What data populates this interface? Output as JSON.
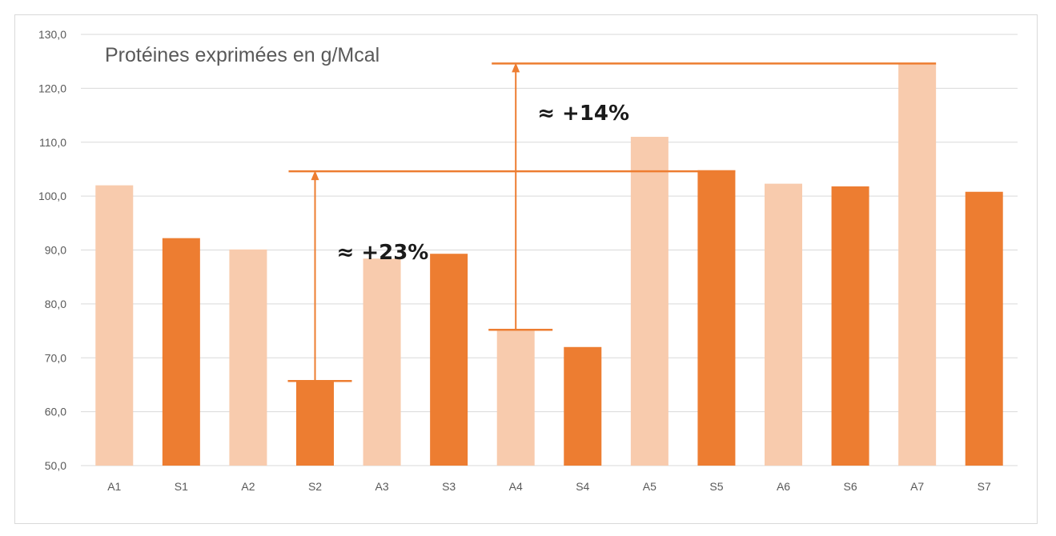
{
  "chart_data": {
    "type": "bar",
    "title": "Protéines exprimées en g/Mcal",
    "categories": [
      "A1",
      "S1",
      "A2",
      "S2",
      "A3",
      "S3",
      "A4",
      "S4",
      "A5",
      "S5",
      "A6",
      "S6",
      "A7",
      "S7"
    ],
    "values": [
      102.0,
      92.2,
      90.1,
      65.7,
      88.4,
      89.3,
      75.0,
      72.0,
      111.0,
      104.8,
      102.3,
      101.8,
      124.6,
      100.8
    ],
    "ylim": [
      50,
      130
    ],
    "yticks": [
      "50,0",
      "60,0",
      "70,0",
      "80,0",
      "90,0",
      "100,0",
      "110,0",
      "120,0",
      "130,0"
    ],
    "grid": true,
    "colors": {
      "A": "#f8cbad",
      "S": "#ed7d31",
      "annotation": "#ed7d31",
      "grid": "#d9d9d9"
    },
    "annotations": [
      {
        "text": "≈ +23%",
        "from_category": "S2",
        "from_value": 65.7,
        "to_value": 104.6,
        "to_category": "S5"
      },
      {
        "text": "≈ +14%",
        "from_category": "A4",
        "from_value": 75.2,
        "to_value": 124.6,
        "to_category": "A7"
      }
    ]
  }
}
